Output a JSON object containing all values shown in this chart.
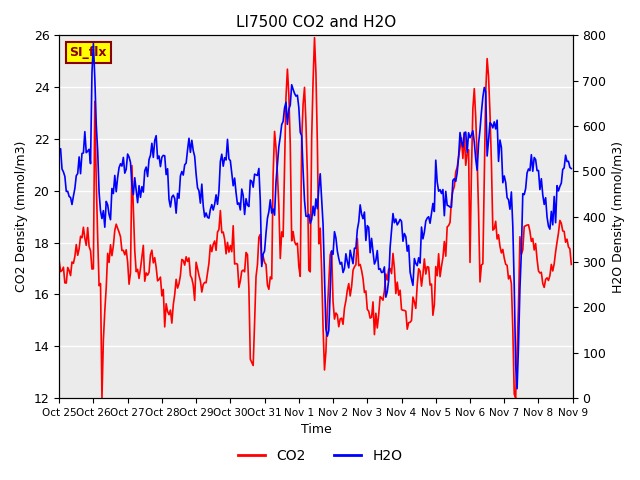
{
  "title": "LI7500 CO2 and H2O",
  "xlabel": "Time",
  "ylabel_left": "CO2 Density (mmol/m3)",
  "ylabel_right": "H2O Density (mmol/m3)",
  "xlim": [
    0,
    360
  ],
  "ylim_left": [
    12,
    26
  ],
  "ylim_right": [
    0,
    800
  ],
  "xtick_labels": [
    "Oct 25",
    "Oct 26",
    "Oct 27",
    "Oct 28",
    "Oct 29",
    "Oct 30",
    "Oct 31",
    "Nov 1",
    "Nov 2",
    "Nov 3",
    "Nov 4",
    "Nov 5",
    "Nov 6",
    "Nov 7",
    "Nov 8",
    "Nov 9"
  ],
  "xtick_positions": [
    0,
    24,
    48,
    72,
    96,
    120,
    144,
    168,
    192,
    216,
    240,
    264,
    288,
    312,
    336,
    360
  ],
  "yticks_left": [
    12,
    14,
    16,
    18,
    20,
    22,
    24,
    26
  ],
  "yticks_right": [
    0,
    100,
    200,
    300,
    400,
    500,
    600,
    700,
    800
  ],
  "co2_color": "#FF0000",
  "h2o_color": "#0000FF",
  "plot_bg_color": "#EBEBEB",
  "annotation_text": "SI_flx",
  "annotation_bg": "#FFFF00",
  "annotation_border": "#8B0000",
  "legend_co2": "CO2",
  "legend_h2o": "H2O",
  "grid_color": "white",
  "line_width": 1.2
}
